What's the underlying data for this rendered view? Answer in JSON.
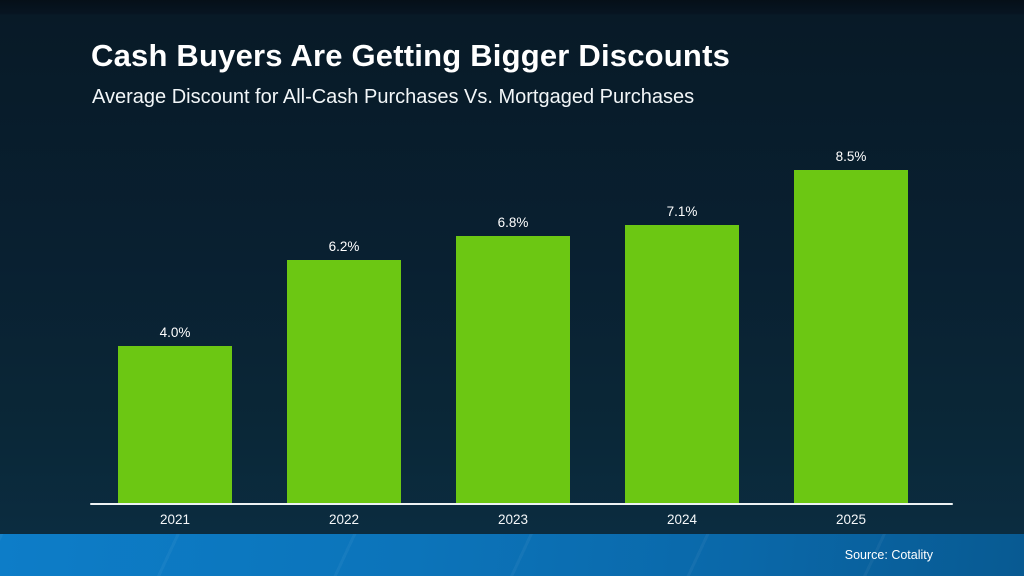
{
  "slide": {
    "title": "Cash Buyers Are Getting Bigger Discounts",
    "subtitle": "Average Discount for All-Cash Purchases Vs. Mortgaged Purchases",
    "source": "Source: Cotality"
  },
  "colors": {
    "bar": "#6cc713",
    "background_top": "#071522",
    "background_bottom": "#0b2c40",
    "axis": "#eef2f4",
    "text": "#ffffff",
    "footer_blue_left": "#0d7cc6",
    "footer_blue_right": "#085a92"
  },
  "chart_data": {
    "type": "bar",
    "title": "Cash Buyers Are Getting Bigger Discounts",
    "subtitle": "Average Discount for All-Cash Purchases Vs. Mortgaged Purchases",
    "categories": [
      "2021",
      "2022",
      "2023",
      "2024",
      "2025"
    ],
    "values": [
      4.0,
      6.2,
      6.8,
      7.1,
      8.5
    ],
    "value_labels": [
      "4.0%",
      "6.2%",
      "6.8%",
      "7.1%",
      "8.5%"
    ],
    "xlabel": "",
    "ylabel": "",
    "ylim": [
      0,
      9
    ],
    "unit": "%",
    "grid": false,
    "legend": false,
    "bar_color": "#6cc713",
    "source": "Source: Cotality"
  }
}
